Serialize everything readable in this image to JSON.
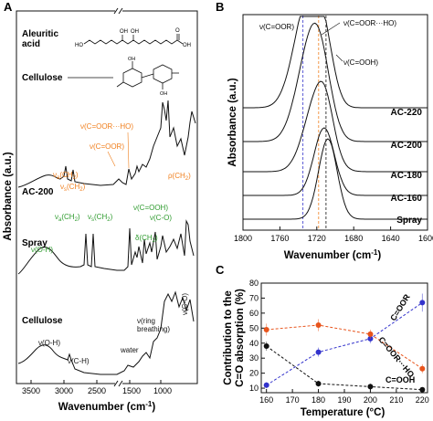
{
  "panels": {
    "A": "A",
    "B": "B",
    "C": "C"
  },
  "panelA": {
    "xlabel": "Wavenumber (cm",
    "xlabel_sup": "-1",
    "xlabel_end": ")",
    "ylabel": "Absorbance (a.u.)",
    "xticks": [
      "3500",
      "3000",
      "2500",
      "1500",
      "1000"
    ],
    "structures": {
      "aleuritic_label_1": "Aleuritic",
      "aleuritic_label_2": "acid",
      "cellulose_label": "Cellulose"
    },
    "traces": [
      {
        "name": "AC-200",
        "label": "AC-200"
      },
      {
        "name": "Spray",
        "label": "Spray"
      },
      {
        "name": "Cellulose",
        "label": "Cellulose"
      }
    ],
    "annotations": {
      "ac200_coorho": "ν(C=OOR···HO)",
      "ac200_coor": "ν(C=OOR)",
      "ac200_vas": "ν",
      "ac200_vas_sub": "a",
      "ac200_vas_end": "(CH",
      "ac200_vas_sub2": "2",
      "ac200_vas_close": ")",
      "ac200_vs": "ν",
      "ac200_vs_sub": "s",
      "ac200_vs_end": "(CH",
      "ac200_vs_sub2": "2",
      "ac200_vs_close": ")",
      "ac200_rho": "ρ(CH",
      "ac200_rho_sub": "2",
      "ac200_rho_close": ")",
      "spray_vas": "ν",
      "spray_vas_sub": "a",
      "spray_vas_end": "(CH",
      "spray_vas_sub2": "2",
      "spray_vas_close": ")",
      "spray_vs": "ν",
      "spray_vs_sub": "s",
      "spray_vs_end": "(CH",
      "spray_vs_sub2": "2",
      "spray_vs_close": ")",
      "spray_cooh": "ν(C=OOH)",
      "spray_co": "ν(C-O)",
      "spray_delta": "δ(CH",
      "spray_delta_sub": "2",
      "spray_delta_close": ")",
      "spray_oh": "ν(O-H)",
      "cell_oh": "ν(O-H)",
      "cell_ch": "ν(C-H)",
      "cell_water": "water",
      "cell_ring1": "ν(ring",
      "cell_ring2": "breathing)",
      "cell_co": "ν(C-O)"
    }
  },
  "panelB": {
    "xlabel": "Wavenumber (cm",
    "xlabel_sup": "-1",
    "xlabel_end": ")",
    "ylabel": "Absorbance (a.u.)",
    "xticks": [
      "1800",
      "1760",
      "1720",
      "1680",
      "1640",
      "1600"
    ],
    "ann_coor": "ν(C=OOR)",
    "ann_coorho": "ν(C=OOR···HO)",
    "ann_cooh": "ν(C=OOH)",
    "traces": [
      "AC-220",
      "AC-200",
      "AC-180",
      "AC-160",
      "Spray"
    ]
  },
  "panelC": {
    "ylabel_1": "Contribution to the",
    "ylabel_2": "C=O absorption (%)",
    "xlabel": "Temperature (°C)",
    "yticks": [
      "10",
      "20",
      "30",
      "40",
      "50",
      "60",
      "70",
      "80"
    ],
    "xticks": [
      "160",
      "170",
      "180",
      "190",
      "200",
      "210",
      "220"
    ],
    "series_labels": {
      "coor": "C=OOR",
      "coorho": "C=OOR···HO",
      "cooh": "C=OOH"
    }
  },
  "chart_data": [
    {
      "type": "line",
      "panel": "A",
      "xlabel": "Wavenumber (cm-1)",
      "ylabel": "Absorbance (a.u.)",
      "x_ticks": [
        3500,
        3000,
        2500,
        1500,
        1000
      ],
      "axis_break": "between 2500 and 1500",
      "series": [
        {
          "name": "AC-200"
        },
        {
          "name": "Spray"
        },
        {
          "name": "Cellulose"
        }
      ]
    },
    {
      "type": "line",
      "panel": "B",
      "xlabel": "Wavenumber (cm-1)",
      "ylabel": "Absorbance (a.u.)",
      "xlim": [
        1800,
        1600
      ],
      "series": [
        {
          "name": "AC-220"
        },
        {
          "name": "AC-200"
        },
        {
          "name": "AC-180"
        },
        {
          "name": "AC-160"
        },
        {
          "name": "Spray"
        }
      ],
      "reference_lines_cm-1": [
        1735,
        1718,
        1710
      ]
    },
    {
      "type": "line",
      "panel": "C",
      "xlabel": "Temperature (°C)",
      "ylabel": "Contribution to the C=O absorption (%)",
      "xlim": [
        158,
        222
      ],
      "ylim": [
        7,
        80
      ],
      "x": [
        160,
        180,
        200,
        220
      ],
      "series": [
        {
          "name": "C=OOR",
          "color": "#3333cc",
          "values": [
            12,
            34,
            43,
            67
          ]
        },
        {
          "name": "C=OOR···HO",
          "color": "#e8541c",
          "values": [
            49,
            52,
            46,
            23
          ]
        },
        {
          "name": "C=OOH",
          "color": "#111111",
          "values": [
            38,
            13,
            11,
            9
          ]
        }
      ]
    }
  ]
}
